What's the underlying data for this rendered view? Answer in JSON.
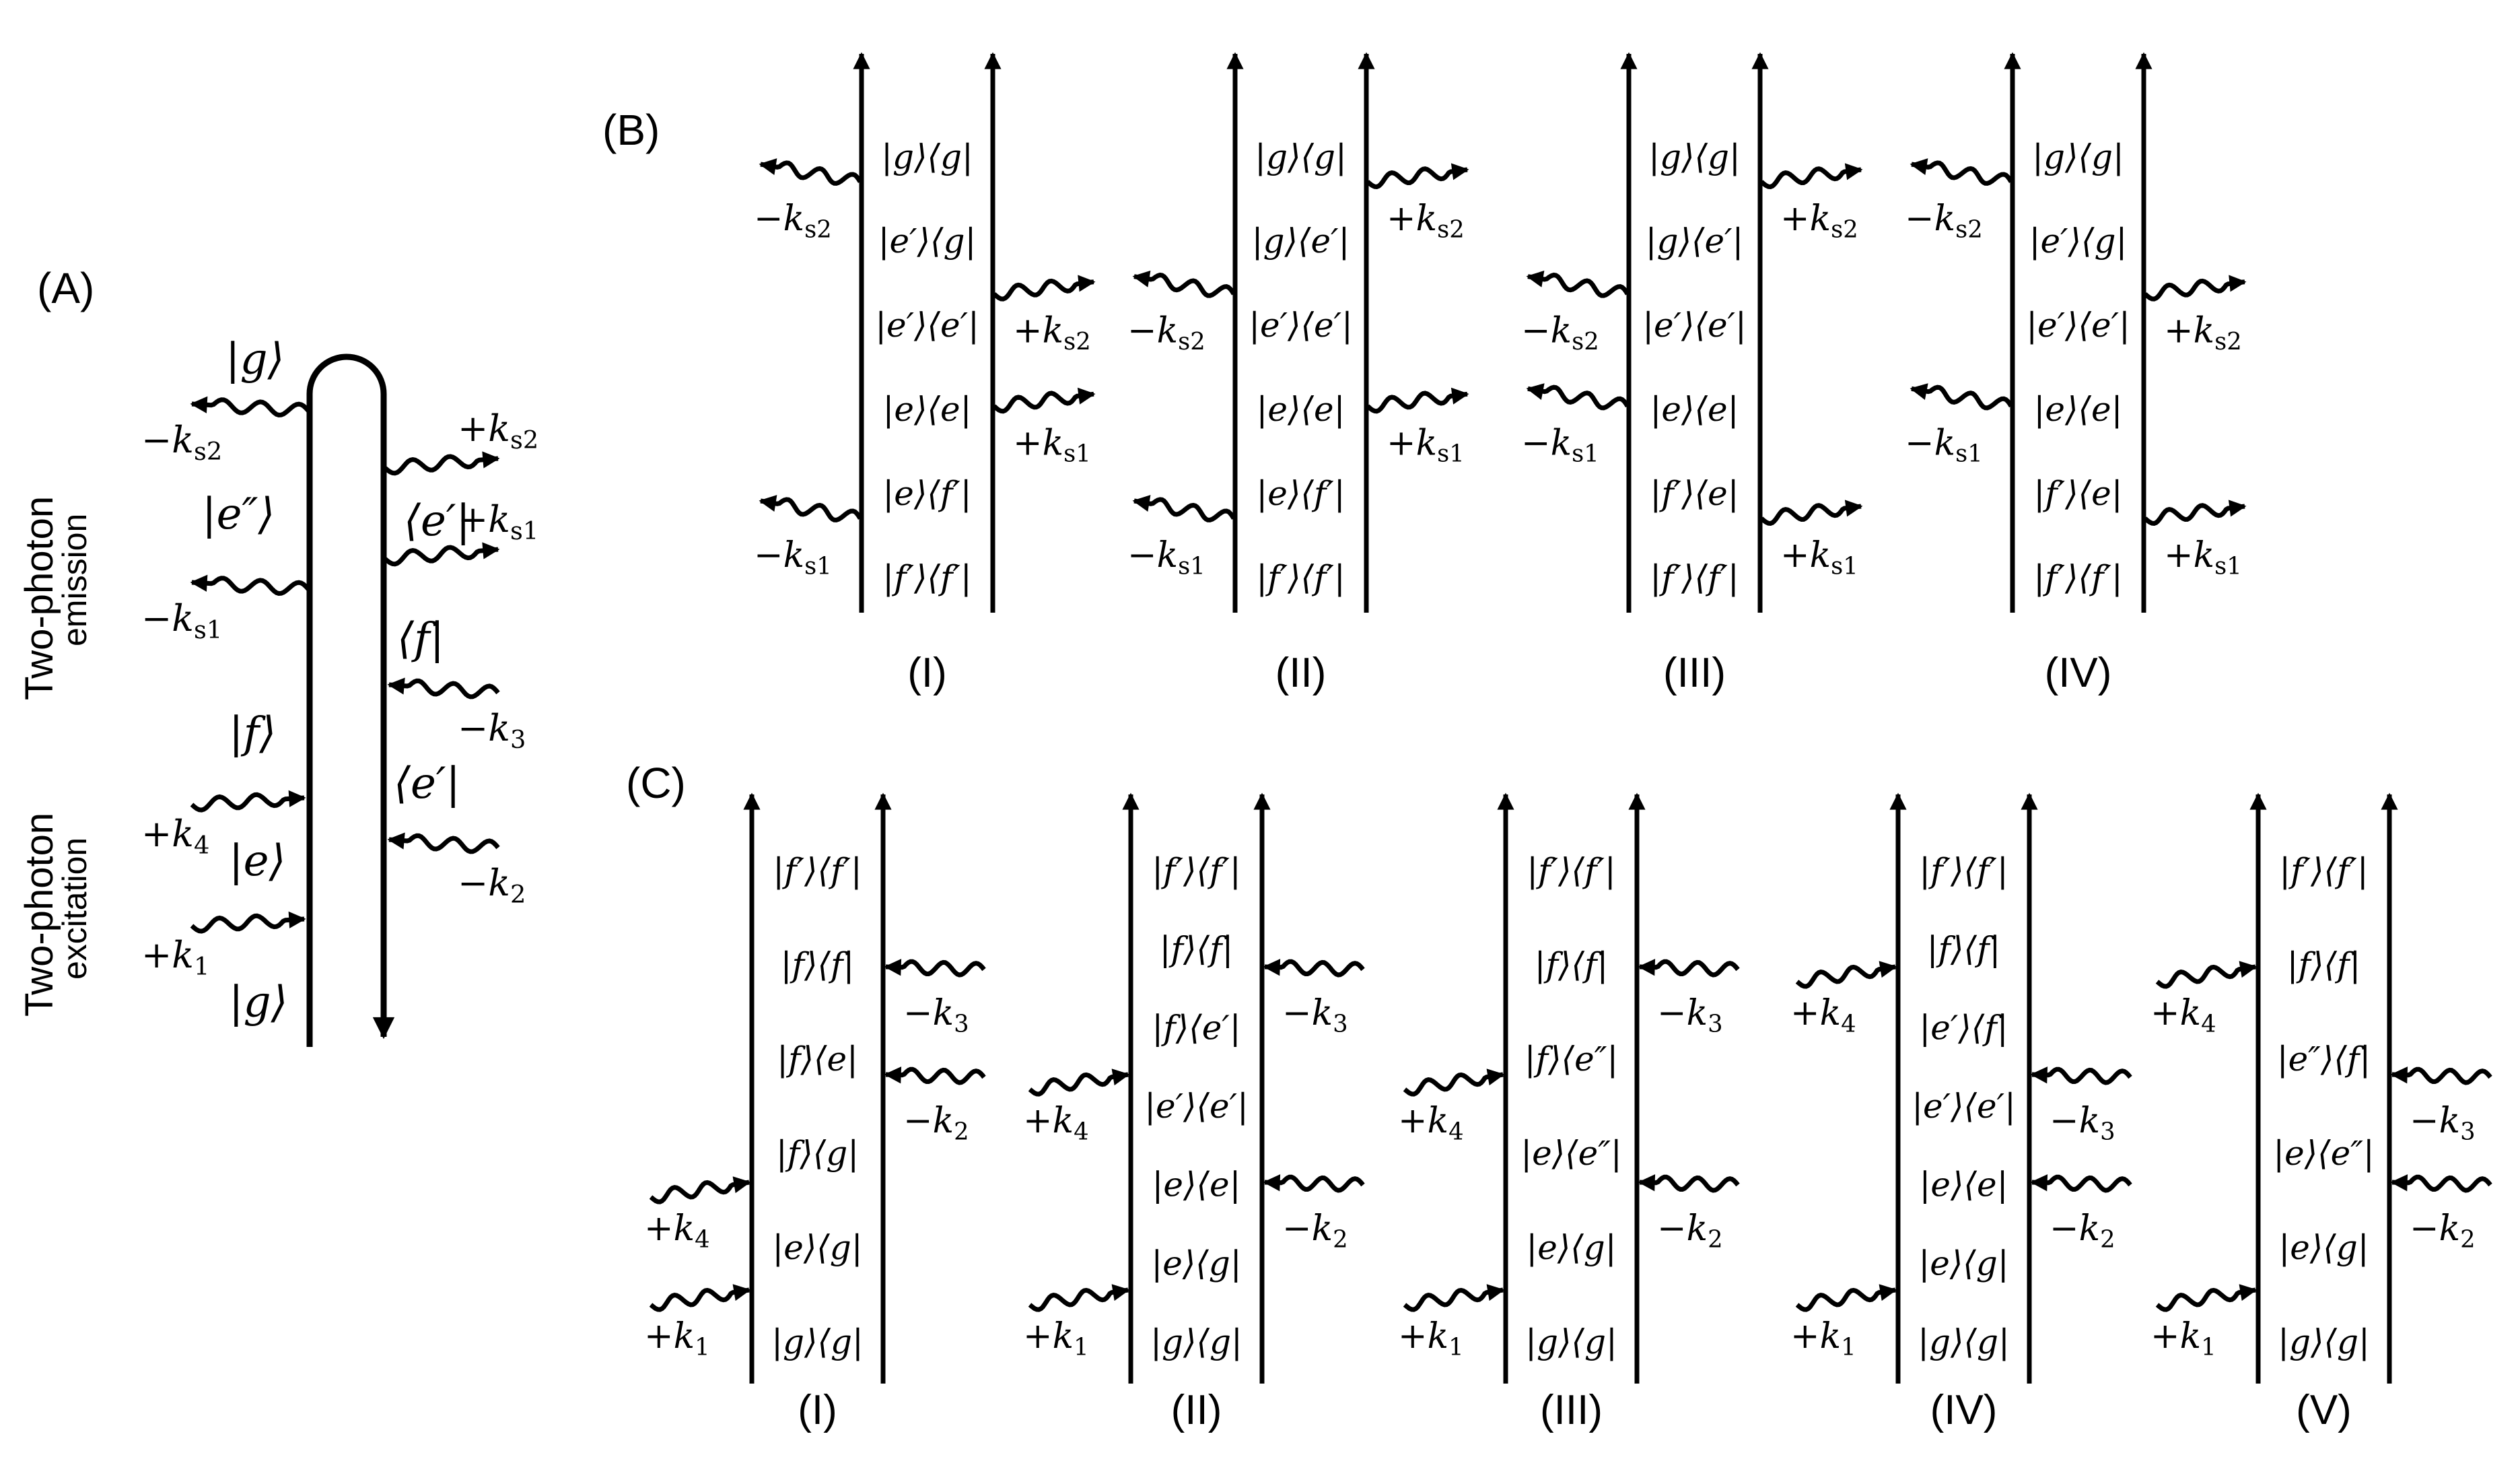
{
  "panels": {
    "A": {
      "label": "(A)",
      "side_labels": {
        "emission": [
          "Two-photon",
          "emission"
        ],
        "excitation": [
          "Two-photon",
          "excitation"
        ]
      },
      "left_states": [
        "|g⟩",
        "|e″⟩",
        "|f⟩",
        "|e⟩",
        "|g⟩"
      ],
      "right_states": [
        "⟨e′|",
        "⟨f|",
        "⟨e′|"
      ],
      "left_fields": [
        "−k_s2",
        "−k_s1",
        "+k_4",
        "+k_1"
      ],
      "right_fields": [
        "+k_s2",
        "+k_s1",
        "−k_3",
        "−k_2"
      ]
    },
    "B": {
      "label": "(B)",
      "diagrams": [
        {
          "numeral": "(I)",
          "states": [
            "|g⟩⟨g|",
            "|e′⟩⟨g|",
            "|e′⟩⟨e′|",
            "|e⟩⟨e|",
            "|e⟩⟨f′|",
            "|f′⟩⟨f′|"
          ],
          "fields": [
            {
              "side": "left",
              "text": "−k_s2"
            },
            {
              "side": "right",
              "text": "+k_s2"
            },
            {
              "side": "right",
              "text": "+k_s1"
            },
            {
              "side": "left",
              "text": "−k_s1"
            }
          ]
        },
        {
          "numeral": "(II)",
          "states": [
            "|g⟩⟨g|",
            "|g⟩⟨e′|",
            "|e′⟩⟨e′|",
            "|e⟩⟨e|",
            "|e⟩⟨f′|",
            "|f′⟩⟨f′|"
          ],
          "fields": [
            {
              "side": "right",
              "text": "+k_s2"
            },
            {
              "side": "left",
              "text": "−k_s2"
            },
            {
              "side": "right",
              "text": "+k_s1"
            },
            {
              "side": "left",
              "text": "−k_s1"
            }
          ]
        },
        {
          "numeral": "(III)",
          "states": [
            "|g⟩⟨g|",
            "|g⟩⟨e′|",
            "|e′⟩⟨e′|",
            "|e⟩⟨e|",
            "|f′⟩⟨e|",
            "|f′⟩⟨f′|"
          ],
          "fields": [
            {
              "side": "right",
              "text": "+k_s2"
            },
            {
              "side": "left",
              "text": "−k_s2"
            },
            {
              "side": "left",
              "text": "−k_s1"
            },
            {
              "side": "right",
              "text": "+k_s1"
            }
          ]
        },
        {
          "numeral": "(IV)",
          "states": [
            "|g⟩⟨g|",
            "|e′⟩⟨g|",
            "|e′⟩⟨e′|",
            "|e⟩⟨e|",
            "|f′⟩⟨e|",
            "|f′⟩⟨f′|"
          ],
          "fields": [
            {
              "side": "left",
              "text": "−k_s2"
            },
            {
              "side": "right",
              "text": "+k_s2"
            },
            {
              "side": "left",
              "text": "−k_s1"
            },
            {
              "side": "right",
              "text": "+k_s1"
            }
          ]
        }
      ]
    },
    "C": {
      "label": "(C)",
      "diagrams": [
        {
          "numeral": "(I)",
          "states": [
            "|f′⟩⟨f′|",
            "|f⟩⟨f|",
            "|f⟩⟨e|",
            "|f⟩⟨g|",
            "|e⟩⟨g|",
            "|g⟩⟨g|"
          ],
          "fields": [
            {
              "side": "right",
              "text": "−k_3"
            },
            {
              "side": "right",
              "text": "−k_2"
            },
            {
              "side": "left",
              "text": "+k_4"
            },
            {
              "side": "left",
              "text": "+k_1"
            }
          ]
        },
        {
          "numeral": "(II)",
          "states": [
            "|f′⟩⟨f′|",
            "|f⟩⟨f|",
            "|f⟩⟨e′|",
            "|e′⟩⟨e′|",
            "|e⟩⟨e|",
            "|e⟩⟨g|",
            "|g⟩⟨g|"
          ],
          "fields": [
            {
              "side": "right",
              "text": "−k_3"
            },
            {
              "side": "left",
              "text": "+k_4"
            },
            {
              "side": "right",
              "text": "−k_2"
            },
            {
              "side": "left",
              "text": "+k_1"
            }
          ]
        },
        {
          "numeral": "(III)",
          "states": [
            "|f′⟩⟨f′|",
            "|f⟩⟨f|",
            "|f⟩⟨e″|",
            "|e⟩⟨e″|",
            "|e⟩⟨g|",
            "|g⟩⟨g|"
          ],
          "fields": [
            {
              "side": "right",
              "text": "−k_3"
            },
            {
              "side": "left",
              "text": "+k_4"
            },
            {
              "side": "right",
              "text": "−k_2"
            },
            {
              "side": "left",
              "text": "+k_1"
            }
          ]
        },
        {
          "numeral": "(IV)",
          "states": [
            "|f′⟩⟨f′|",
            "|f⟩⟨f|",
            "|e′⟩⟨f|",
            "|e′⟩⟨e′|",
            "|e⟩⟨e|",
            "|e⟩⟨g|",
            "|g⟩⟨g|"
          ],
          "fields": [
            {
              "side": "left",
              "text": "+k_4"
            },
            {
              "side": "right",
              "text": "−k_3"
            },
            {
              "side": "right",
              "text": "−k_2"
            },
            {
              "side": "left",
              "text": "+k_1"
            }
          ]
        },
        {
          "numeral": "(V)",
          "states": [
            "|f′⟩⟨f′|",
            "|f⟩⟨f|",
            "|e″⟩⟨f|",
            "|e⟩⟨e″|",
            "|e⟩⟨g|",
            "|g⟩⟨g|"
          ],
          "fields": [
            {
              "side": "left",
              "text": "+k_4"
            },
            {
              "side": "right",
              "text": "−k_3"
            },
            {
              "side": "right",
              "text": "−k_2"
            },
            {
              "side": "left",
              "text": "+k_1"
            }
          ]
        }
      ]
    }
  }
}
